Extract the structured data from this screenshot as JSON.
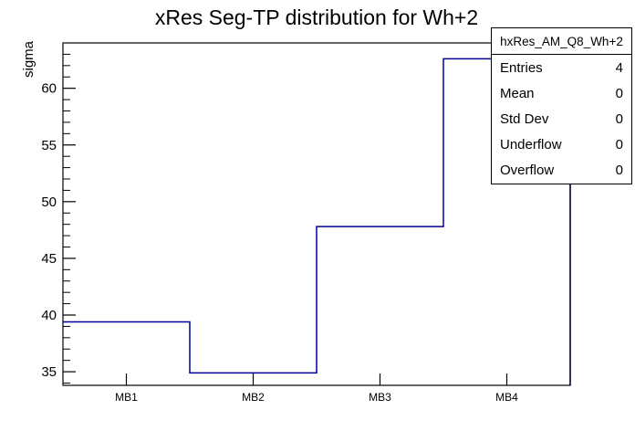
{
  "chart_data": {
    "type": "bar",
    "style": "root-step-histogram",
    "title": "xRes Seg-TP distribution for Wh+2",
    "xlabel": "",
    "ylabel": "sigma",
    "categories": [
      "MB1",
      "MB2",
      "MB3",
      "MB4"
    ],
    "values": [
      39.4,
      34.9,
      47.8,
      62.6
    ],
    "ylim": [
      33.8,
      64.0
    ],
    "y_major_ticks": [
      35,
      40,
      45,
      50,
      55,
      60
    ],
    "y_minor_tick_step": 1,
    "grid": false,
    "legend_position": "none",
    "line_color": "#000099",
    "frame_color": "#000000",
    "background_color": "#ffffff"
  },
  "stats_box": {
    "header": "hxRes_AM_Q8_Wh+2",
    "rows": [
      {
        "label": "Entries",
        "value": "4"
      },
      {
        "label": "Mean",
        "value": "0"
      },
      {
        "label": "Std Dev",
        "value": "0"
      },
      {
        "label": "Underflow",
        "value": "0"
      },
      {
        "label": "Overflow",
        "value": "0"
      }
    ]
  }
}
